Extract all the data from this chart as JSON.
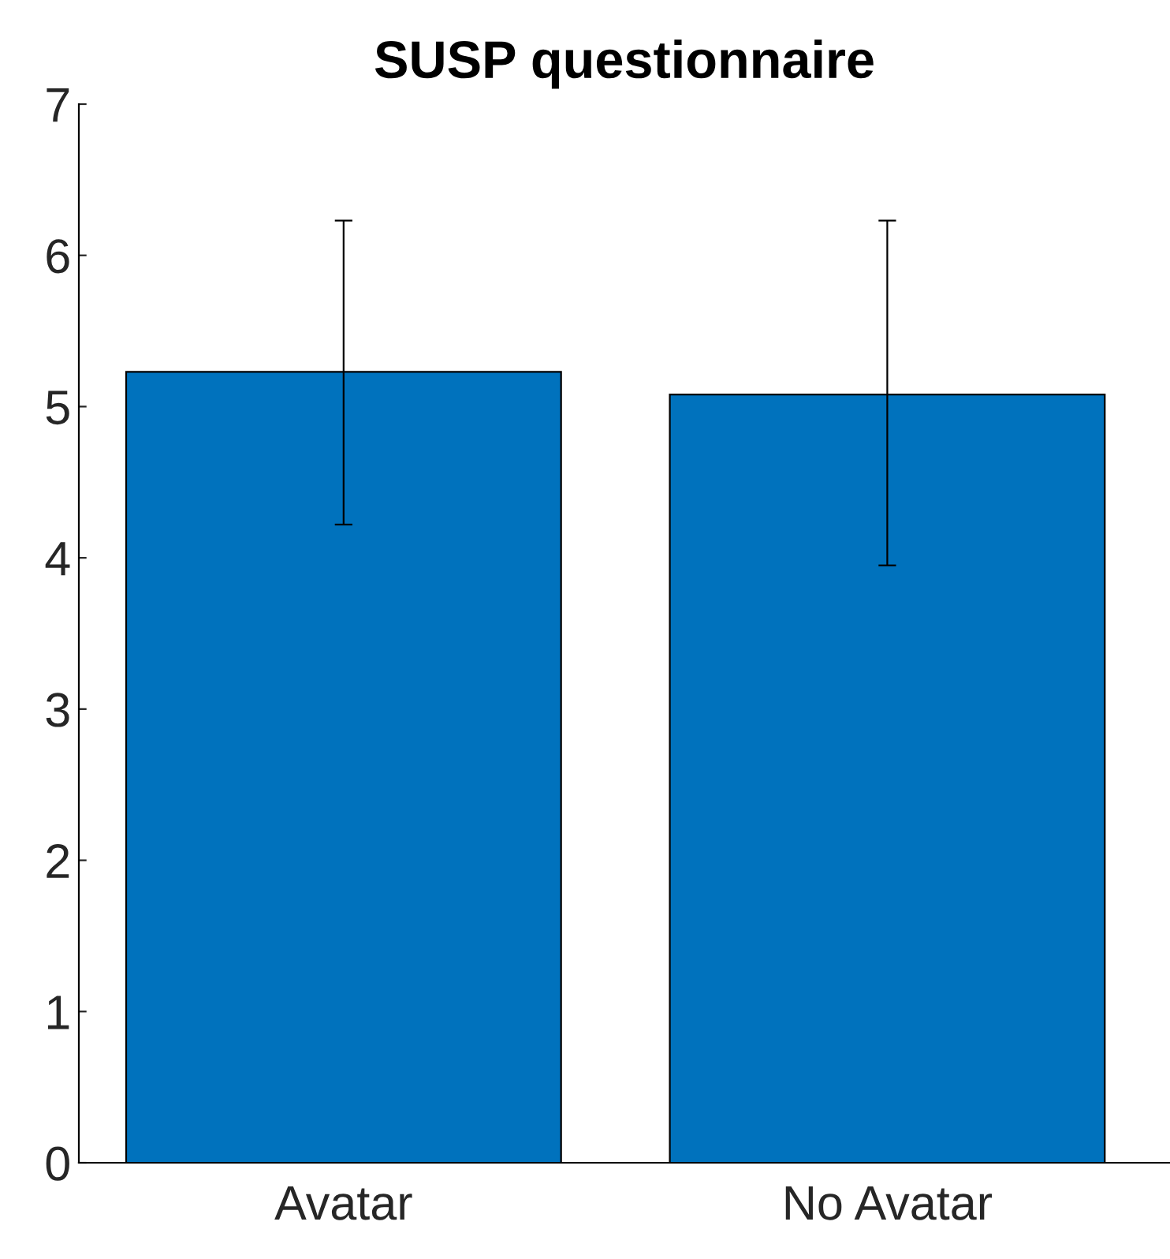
{
  "chart_data": {
    "type": "bar",
    "title": "SUSP questionnaire",
    "categories": [
      "Avatar",
      "No Avatar"
    ],
    "values": [
      5.23,
      5.08
    ],
    "color": "#0072bd",
    "errors": [
      [
        4.22,
        6.23
      ],
      [
        3.95,
        6.23
      ]
    ],
    "ylim": [
      0,
      7
    ],
    "yticks": [
      0,
      1,
      2,
      3,
      4,
      5,
      6,
      7
    ],
    "grid": false,
    "legend": false
  }
}
